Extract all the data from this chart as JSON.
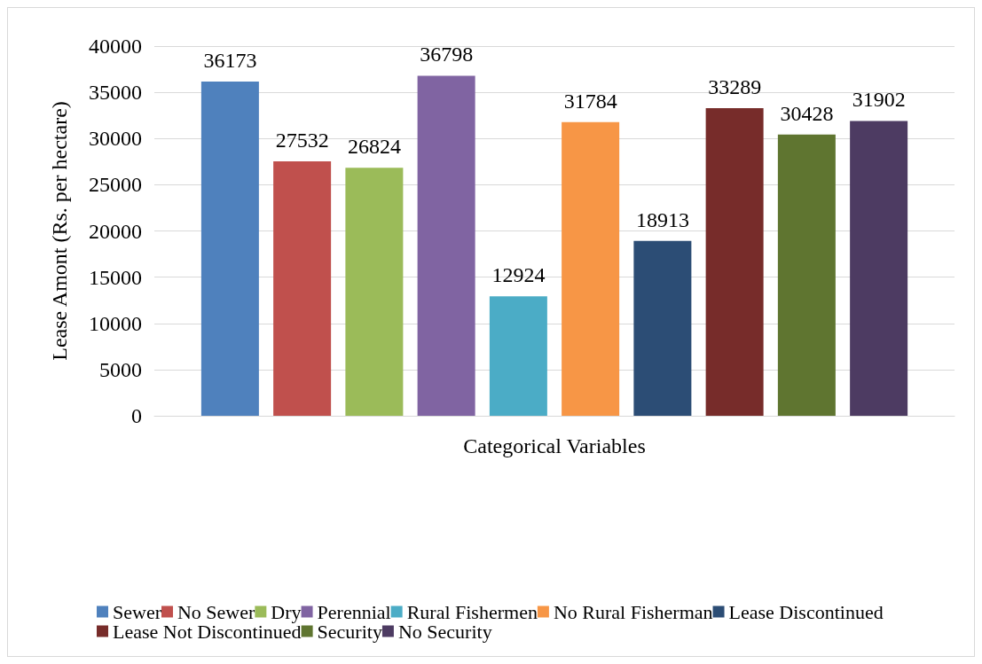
{
  "chart_data": {
    "type": "bar",
    "xlabel": "Categorical Variables",
    "ylabel": "Lease Amont (Rs. per hectare)",
    "categories": [
      null
    ],
    "series": [
      {
        "name": "Sewer",
        "color": "#4f81bd",
        "values": [
          36173
        ]
      },
      {
        "name": "No Sewer",
        "color": "#c0504d",
        "values": [
          27532
        ]
      },
      {
        "name": "Dry",
        "color": "#9bbb59",
        "values": [
          26824
        ]
      },
      {
        "name": "Perennial",
        "color": "#8064a2",
        "values": [
          36798
        ]
      },
      {
        "name": "Rural Fishermen",
        "color": "#4bacc6",
        "values": [
          12924
        ]
      },
      {
        "name": "No Rural Fisherman",
        "color": "#f79646",
        "values": [
          31784
        ]
      },
      {
        "name": "Lease Discontinued",
        "color": "#2c4d75",
        "values": [
          18913
        ]
      },
      {
        "name": "Lease Not Discontinued",
        "color": "#772c2a",
        "values": [
          33289
        ]
      },
      {
        "name": "Security",
        "color": "#5f7530",
        "values": [
          30428
        ]
      },
      {
        "name": "No Security",
        "color": "#4d3b62",
        "values": [
          31902
        ]
      }
    ],
    "ylim": [
      0,
      40000
    ],
    "yticks": [
      0,
      5000,
      10000,
      15000,
      20000,
      25000,
      30000,
      35000,
      40000
    ],
    "grid": "y",
    "legend": "bottom",
    "data_labels": true
  }
}
